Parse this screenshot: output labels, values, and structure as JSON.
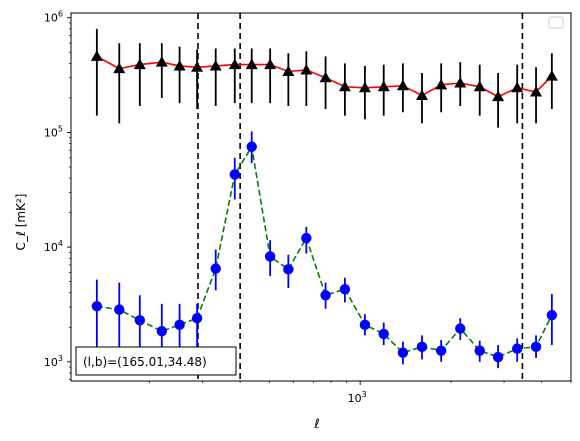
{
  "chart_data": {
    "type": "scatter",
    "title": "",
    "xlabel": "ℓ",
    "ylabel": "C_ℓ  [mK²]",
    "x_scale": "log",
    "y_scale": "log",
    "xlim": [
      110,
      5000
    ],
    "ylim": [
      680,
      1100000
    ],
    "x_tick_labels": [
      {
        "value": 1000,
        "base": "10",
        "exp": "3"
      }
    ],
    "y_tick_labels": [
      {
        "value": 1000,
        "base": "10",
        "exp": "3"
      },
      {
        "value": 10000,
        "base": "10",
        "exp": "4"
      },
      {
        "value": 100000,
        "base": "10",
        "exp": "5"
      },
      {
        "value": 1000000,
        "base": "10",
        "exp": "6"
      }
    ],
    "vlines": [
      290,
      400,
      3450
    ],
    "annotation": "(l,b)=(165.01,34.48)",
    "legend": "top-right (empty)",
    "series": [
      {
        "marker": "triangle",
        "marker_color": "#000000",
        "line_color": "#ff0000",
        "line_style": "solid",
        "x": [
          134,
          159,
          186,
          220,
          252,
          288,
          332,
          384,
          437,
          503,
          578,
          663,
          768,
          890,
          1037,
          1197,
          1386,
          1603,
          1856,
          2147,
          2491,
          2866,
          3316,
          3829,
          4320
        ],
        "y": [
          460000,
          360000,
          390000,
          410000,
          380000,
          370000,
          380000,
          390000,
          390000,
          390000,
          340000,
          350000,
          300000,
          250000,
          245000,
          250000,
          255000,
          210000,
          260000,
          270000,
          250000,
          205000,
          245000,
          225000,
          310000
        ],
        "err_low": [
          140000,
          120000,
          170000,
          200000,
          180000,
          160000,
          170000,
          180000,
          180000,
          180000,
          170000,
          170000,
          160000,
          140000,
          130000,
          140000,
          150000,
          120000,
          150000,
          170000,
          140000,
          110000,
          120000,
          120000,
          160000
        ],
        "err_high": [
          800000,
          600000,
          600000,
          600000,
          560000,
          530000,
          540000,
          540000,
          540000,
          540000,
          490000,
          510000,
          460000,
          400000,
          380000,
          390000,
          400000,
          330000,
          400000,
          410000,
          390000,
          330000,
          390000,
          370000,
          490000
        ]
      },
      {
        "marker": "circle",
        "marker_color": "#0000ff",
        "line_color": "#008000",
        "line_style": "dashed",
        "x": [
          134,
          159,
          186,
          220,
          252,
          288,
          332,
          384,
          437,
          503,
          578,
          663,
          768,
          890,
          1037,
          1197,
          1386,
          1603,
          1856,
          2147,
          2491,
          2866,
          3316,
          3829,
          4320
        ],
        "y": [
          3050,
          2850,
          2300,
          1850,
          2100,
          2400,
          6500,
          43000,
          75000,
          8300,
          6400,
          12000,
          3800,
          4300,
          2100,
          1750,
          1200,
          1350,
          1250,
          1950,
          1250,
          1100,
          1300,
          1350,
          2550
        ],
        "err_low": [
          1050,
          1050,
          1050,
          1050,
          1050,
          1050,
          4200,
          26000,
          54000,
          5600,
          4400,
          8800,
          2900,
          3300,
          1700,
          1400,
          950,
          1050,
          1000,
          1550,
          1000,
          880,
          1000,
          1080,
          1400
        ],
        "err_high": [
          5200,
          4900,
          3800,
          3200,
          3200,
          3200,
          9500,
          60000,
          102000,
          11500,
          8600,
          15000,
          4900,
          5400,
          2600,
          2200,
          1500,
          1700,
          1550,
          2400,
          1530,
          1400,
          1600,
          1700,
          3900
        ]
      }
    ]
  }
}
